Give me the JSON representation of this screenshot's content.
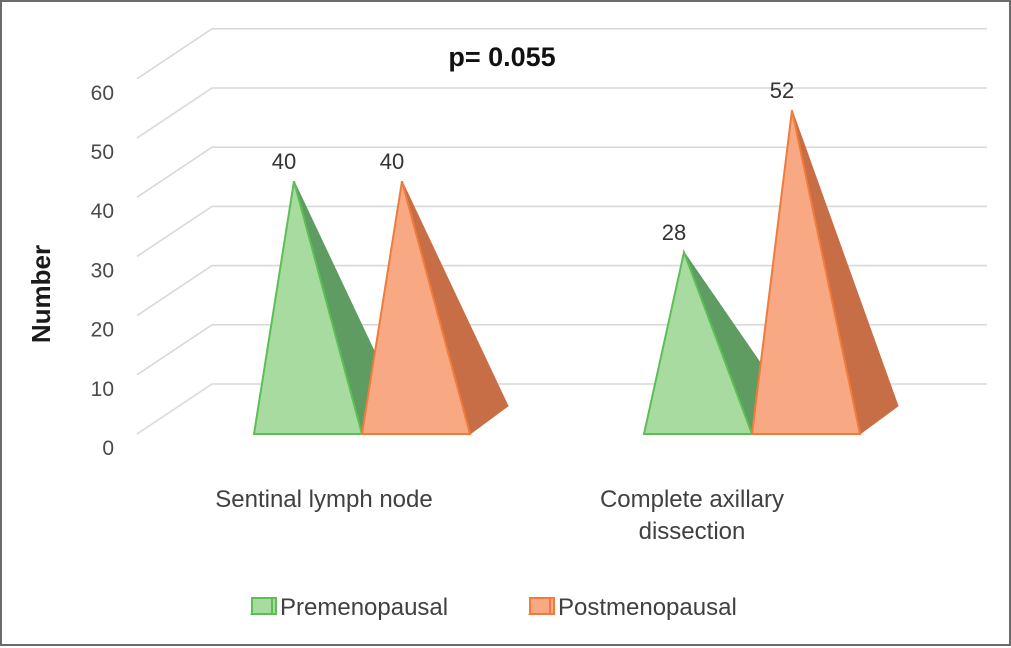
{
  "chart_data": {
    "type": "bar",
    "style": "3d-pyramid",
    "title": "p= 0.055",
    "xlabel": "",
    "ylabel": "Number",
    "ylim": [
      0,
      60
    ],
    "yticks": [
      "0",
      "10",
      "20",
      "30",
      "40",
      "50",
      "60"
    ],
    "grid": true,
    "legend_position": "bottom",
    "categories": [
      "Sentinal lymph node",
      "Complete axillary dissection"
    ],
    "series": [
      {
        "name": "Premenopausal",
        "values": [
          40,
          28
        ],
        "color": "#a8dba0"
      },
      {
        "name": "Postmenopausal",
        "values": [
          40,
          52
        ],
        "color": "#f8a882"
      }
    ],
    "data_labels": [
      "40",
      "40",
      "28",
      "52"
    ]
  },
  "colors": {
    "premenopausal_front": "#a8dba0",
    "premenopausal_side": "#5e9c62",
    "premenopausal_edge": "#5cbf55",
    "postmenopausal_front": "#f8a882",
    "postmenopausal_side": "#c86e46",
    "postmenopausal_edge": "#f07c3c",
    "gridline": "#d9d9d9"
  }
}
